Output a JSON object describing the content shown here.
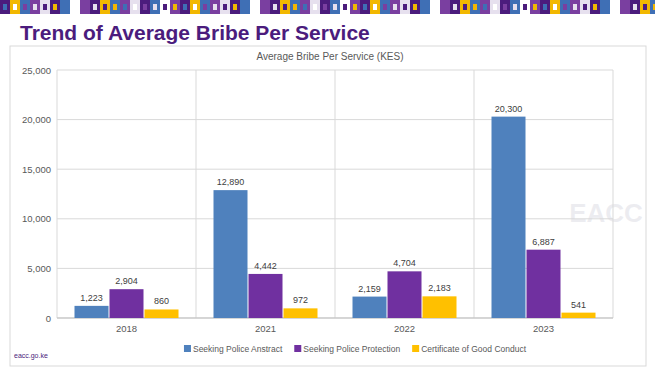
{
  "page": {
    "heading": "Trend of Average Bribe Per Service",
    "footer": "eacc.go.ke",
    "watermark": "EACC"
  },
  "chart_data": {
    "type": "bar",
    "title": "Average Bribe Per Service (KES)",
    "categories": [
      "2018",
      "2021",
      "2022",
      "2023"
    ],
    "series": [
      {
        "name": "Seeking Police Anstract",
        "color": "#4f81bd",
        "values": [
          1223,
          12890,
          2159,
          20300
        ],
        "value_labels": [
          "1,223",
          "12,890",
          "2,159",
          "20,300"
        ]
      },
      {
        "name": "Seeking Police Protection",
        "color": "#7030a0",
        "values": [
          2904,
          4442,
          4704,
          6887
        ],
        "value_labels": [
          "2,904",
          "4,442",
          "4,704",
          "6,887"
        ]
      },
      {
        "name": "Certificate of Good Conduct",
        "color": "#ffc000",
        "values": [
          860,
          972,
          2183,
          541
        ],
        "value_labels": [
          "860",
          "972",
          "2,183",
          "541"
        ]
      }
    ],
    "ylim": [
      0,
      25000
    ],
    "yticks": [
      0,
      {
        "value": 5000,
        "label": "5,000"
      },
      {
        "value": 10000,
        "label": "10,000"
      },
      {
        "value": 15000,
        "label": "15,000"
      },
      {
        "value": 20000,
        "label": "20,000"
      },
      {
        "value": 25000,
        "label": "25,000"
      }
    ],
    "grid": true,
    "legend": "bottom",
    "data_labels": true
  }
}
